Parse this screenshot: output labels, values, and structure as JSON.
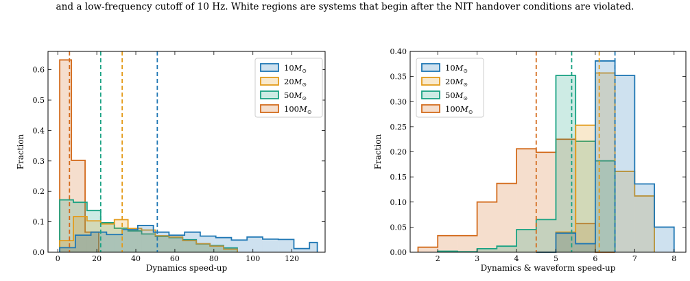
{
  "caption": "and a low-frequency cutoff of 10 Hz. White regions are systems that begin after the NIT handover conditions are violated.",
  "colors": {
    "series_10": "#1f77b4",
    "series_20": "#e39b1b",
    "series_50": "#1aa283",
    "series_100": "#d36b1c"
  },
  "chart_data": [
    {
      "type": "histogram",
      "title": "",
      "xlabel": "Dynamics speed-up",
      "ylabel": "Fraction",
      "xlim": [
        -5,
        137
      ],
      "ylim": [
        0,
        0.66
      ],
      "xticks": [
        0,
        20,
        40,
        60,
        80,
        100,
        120
      ],
      "yticks": [
        0.0,
        0.1,
        0.2,
        0.3,
        0.4,
        0.5,
        0.6
      ],
      "legend": {
        "position": "top-right",
        "entries": [
          "10M⊙",
          "20M⊙",
          "50M⊙",
          "100M⊙"
        ]
      },
      "grid": false,
      "series": [
        {
          "name": "100M⊙",
          "color": "#d36b1c",
          "bins": [
            1,
            7,
            14,
            21
          ],
          "values": [
            0.632,
            0.302,
            0.066
          ],
          "median": 6
        },
        {
          "name": "50M⊙",
          "color": "#1aa283",
          "bins": [
            1,
            8,
            15,
            22,
            29,
            36,
            43,
            50,
            57,
            64,
            71,
            78,
            85,
            92
          ],
          "values": [
            0.172,
            0.164,
            0.137,
            0.097,
            0.079,
            0.07,
            0.06,
            0.052,
            0.048,
            0.041,
            0.027,
            0.022,
            0.014
          ],
          "median": 22
        },
        {
          "name": "20M⊙",
          "color": "#e39b1b",
          "bins": [
            1,
            8,
            15,
            22,
            29,
            36,
            43,
            50,
            57,
            64,
            71,
            78,
            85,
            92
          ],
          "values": [
            0.038,
            0.117,
            0.103,
            0.093,
            0.107,
            0.078,
            0.073,
            0.054,
            0.05,
            0.038,
            0.028,
            0.02,
            0.01
          ],
          "median": 33
        },
        {
          "name": "10M⊙",
          "color": "#1f77b4",
          "bins": [
            1,
            9,
            17,
            25,
            33,
            41,
            49,
            57,
            65,
            73,
            81,
            89,
            97,
            105,
            113,
            121,
            129,
            133
          ],
          "values": [
            0.015,
            0.056,
            0.066,
            0.058,
            0.074,
            0.088,
            0.066,
            0.056,
            0.066,
            0.053,
            0.048,
            0.04,
            0.05,
            0.043,
            0.042,
            0.012,
            0.032
          ],
          "median": 51
        }
      ]
    },
    {
      "type": "histogram",
      "title": "",
      "xlabel": "Dynamics & waveform speed-up",
      "ylabel": "Fraction",
      "xlim": [
        1.3,
        8.3
      ],
      "ylim": [
        0,
        0.4
      ],
      "xticks": [
        2,
        3,
        4,
        5,
        6,
        7,
        8
      ],
      "yticks": [
        0.0,
        0.05,
        0.1,
        0.15,
        0.2,
        0.25,
        0.3,
        0.35,
        0.4
      ],
      "legend": {
        "position": "top-left",
        "entries": [
          "10M⊙",
          "20M⊙",
          "50M⊙",
          "100M⊙"
        ]
      },
      "grid": false,
      "series": [
        {
          "name": "100M⊙",
          "color": "#d36b1c",
          "bins": [
            1.5,
            2,
            2.5,
            3,
            3.5,
            4,
            4.5,
            5,
            5.5,
            6,
            6.5
          ],
          "values": [
            0.01,
            0.033,
            0.033,
            0.1,
            0.137,
            0.206,
            0.199,
            0.225,
            0.057,
            0.0
          ],
          "median": 4.5
        },
        {
          "name": "50M⊙",
          "color": "#1aa283",
          "bins": [
            2,
            2.5,
            3,
            3.5,
            4,
            4.5,
            5,
            5.5,
            6,
            6.5
          ],
          "values": [
            0.002,
            0.001,
            0.007,
            0.012,
            0.045,
            0.065,
            0.352,
            0.221,
            0.182
          ],
          "median": 5.4
        },
        {
          "name": "20M⊙",
          "color": "#e39b1b",
          "bins": [
            4.5,
            5,
            5.5,
            6,
            6.5,
            7,
            7.5
          ],
          "values": [
            0.0,
            0.04,
            0.253,
            0.357,
            0.161,
            0.112
          ],
          "median": 6.1
        },
        {
          "name": "10M⊙",
          "color": "#1f77b4",
          "bins": [
            4.5,
            5,
            5.5,
            6,
            6.5,
            7,
            7.5,
            8
          ],
          "values": [
            0.0,
            0.038,
            0.017,
            0.381,
            0.352,
            0.136,
            0.05
          ],
          "median": 6.5
        }
      ]
    }
  ]
}
